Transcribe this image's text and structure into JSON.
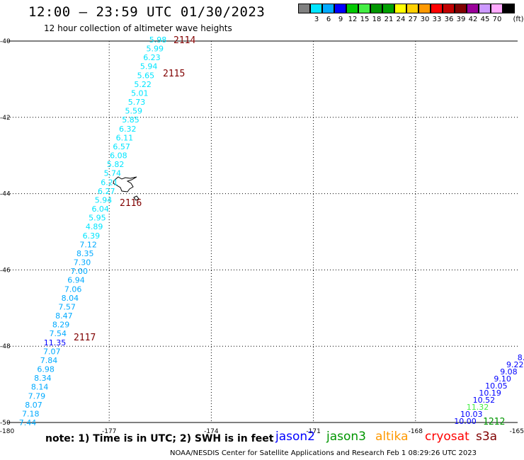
{
  "title": "12:00 — 23:59 UTC 01/30/2023",
  "subtitle": "12 hour collection of altimeter wave heights",
  "legend": {
    "unit": "(ft)",
    "items": [
      {
        "color": "#808080",
        "label": ""
      },
      {
        "color": "#00e5ff",
        "label": "3"
      },
      {
        "color": "#00aaff",
        "label": "6"
      },
      {
        "color": "#0000ff",
        "label": "9"
      },
      {
        "color": "#00c800",
        "label": "12"
      },
      {
        "color": "#44ee44",
        "label": "15"
      },
      {
        "color": "#009600",
        "label": "18"
      },
      {
        "color": "#00a000",
        "label": "21"
      },
      {
        "color": "#ffff00",
        "label": "24"
      },
      {
        "color": "#ffd000",
        "label": "27"
      },
      {
        "color": "#ff9900",
        "label": "30"
      },
      {
        "color": "#ff0000",
        "label": "33"
      },
      {
        "color": "#c00000",
        "label": "36"
      },
      {
        "color": "#800000",
        "label": "39"
      },
      {
        "color": "#990099",
        "label": "42"
      },
      {
        "color": "#cc99ff",
        "label": "45"
      },
      {
        "color": "#ffaaff",
        "label": "70"
      },
      {
        "color": "#000000",
        "label": ""
      }
    ]
  },
  "axes": {
    "x_ticks": [
      "-180",
      "-177",
      "-174",
      "-171",
      "-168",
      "-165"
    ],
    "y_ticks": [
      "-40",
      "-42",
      "-44",
      "-46",
      "-48",
      "-50"
    ]
  },
  "map": {
    "lon_range": [
      -180,
      -165
    ],
    "lat_range": [
      -50,
      -40
    ],
    "track_west": [
      {
        "v": "5.98",
        "c": "#00e5ff"
      },
      {
        "v": "5.99",
        "c": "#00e5ff"
      },
      {
        "v": "6.23",
        "c": "#00e5ff"
      },
      {
        "v": "5.94",
        "c": "#00e5ff"
      },
      {
        "v": "5.65",
        "c": "#00e5ff"
      },
      {
        "v": "5.22",
        "c": "#00e5ff"
      },
      {
        "v": "5.01",
        "c": "#00e5ff"
      },
      {
        "v": "5.73",
        "c": "#00e5ff"
      },
      {
        "v": "5.59",
        "c": "#00e5ff"
      },
      {
        "v": "5.85",
        "c": "#00e5ff"
      },
      {
        "v": "6.32",
        "c": "#00e5ff"
      },
      {
        "v": "6.11",
        "c": "#00e5ff"
      },
      {
        "v": "6.57",
        "c": "#00e5ff"
      },
      {
        "v": "6.08",
        "c": "#00e5ff"
      },
      {
        "v": "5.82",
        "c": "#00e5ff"
      },
      {
        "v": "5.74",
        "c": "#00e5ff"
      },
      {
        "v": "6.21",
        "c": "#00e5ff"
      },
      {
        "v": "6.27",
        "c": "#00e5ff"
      },
      {
        "v": "5.94",
        "c": "#00e5ff"
      },
      {
        "v": "6.04",
        "c": "#00e5ff"
      },
      {
        "v": "5.95",
        "c": "#00e5ff"
      },
      {
        "v": "4.89",
        "c": "#00e5ff"
      },
      {
        "v": "6.39",
        "c": "#00e5ff"
      },
      {
        "v": "7.12",
        "c": "#00aaff"
      },
      {
        "v": "8.35",
        "c": "#00aaff"
      },
      {
        "v": "7.30",
        "c": "#00aaff"
      },
      {
        "v": "7.00",
        "c": "#00aaff"
      },
      {
        "v": "6.94",
        "c": "#00aaff"
      },
      {
        "v": "7.06",
        "c": "#00aaff"
      },
      {
        "v": "8.04",
        "c": "#00aaff"
      },
      {
        "v": "7.57",
        "c": "#00aaff"
      },
      {
        "v": "8.47",
        "c": "#00aaff"
      },
      {
        "v": "8.29",
        "c": "#00aaff"
      },
      {
        "v": "7.54",
        "c": "#00aaff"
      },
      {
        "v": "11.35",
        "c": "#0000ff"
      },
      {
        "v": "7.07",
        "c": "#00aaff"
      },
      {
        "v": "7.84",
        "c": "#00aaff"
      },
      {
        "v": "6.98",
        "c": "#00aaff"
      },
      {
        "v": "8.34",
        "c": "#00aaff"
      },
      {
        "v": "8.14",
        "c": "#00aaff"
      },
      {
        "v": "7.79",
        "c": "#00aaff"
      },
      {
        "v": "8.07",
        "c": "#00aaff"
      },
      {
        "v": "7.18",
        "c": "#00aaff"
      },
      {
        "v": "7.44",
        "c": "#00aaff"
      }
    ],
    "track_east": [
      {
        "v": "8.",
        "c": "#0000ff"
      },
      {
        "v": "9.22",
        "c": "#0000ff"
      },
      {
        "v": "9.08",
        "c": "#0000ff"
      },
      {
        "v": "9.10",
        "c": "#0000ff"
      },
      {
        "v": "10.05",
        "c": "#0000ff"
      },
      {
        "v": "10.19",
        "c": "#0000ff"
      },
      {
        "v": "10.52",
        "c": "#0000ff"
      },
      {
        "v": "11.32",
        "c": "#44ee44"
      },
      {
        "v": "10.03",
        "c": "#0000ff"
      },
      {
        "v": "10.00",
        "c": "#0000ff"
      }
    ],
    "time_labels": [
      {
        "t": "2114",
        "c": "#800000"
      },
      {
        "t": "2115",
        "c": "#800000"
      },
      {
        "t": "2116",
        "c": "#800000"
      },
      {
        "t": "2117",
        "c": "#800000"
      },
      {
        "t": "1212",
        "c": "#009600"
      }
    ]
  },
  "footer": {
    "note": "note: 1) Time is in UTC; 2) SWH is in feet",
    "satellites": [
      {
        "name": "jason2",
        "color": "#0000ff"
      },
      {
        "name": "jason3",
        "color": "#009600"
      },
      {
        "name": "altika",
        "color": "#ff9900"
      },
      {
        "name": "cryosat",
        "color": "#ff0000"
      },
      {
        "name": "s3a",
        "color": "#800000"
      }
    ],
    "credit": "NOAA/NESDIS Center for Satellite Applications and Research    Feb  1 08:29:26 UTC 2023"
  }
}
